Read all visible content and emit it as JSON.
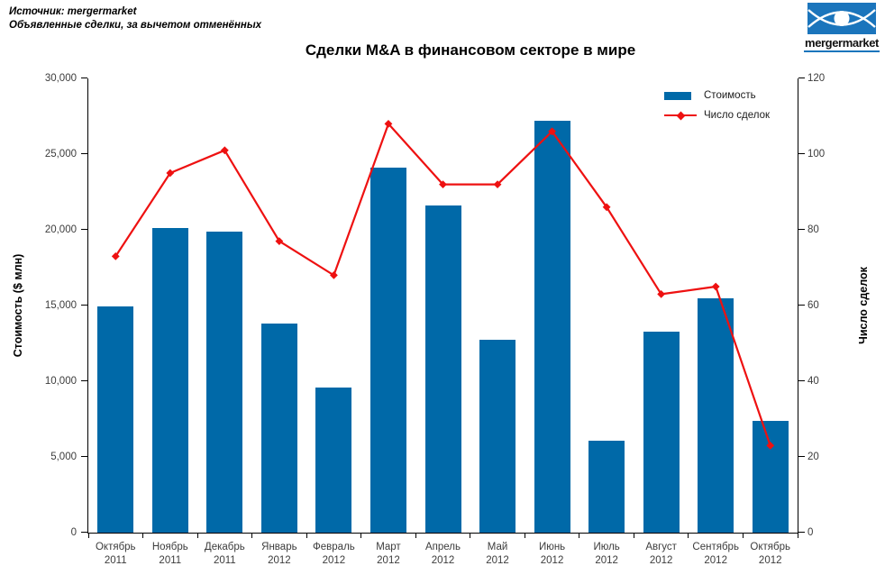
{
  "header": {
    "source_line1": "Источник: mergermarket",
    "source_line2": "Объявленные сделки, за вычетом отменённых",
    "logo_text": "mergermarket"
  },
  "colors": {
    "bar": "#0069a8",
    "line": "#ee1111",
    "logo_blue": "#1b75bc",
    "axis_text": "#3c3c3c"
  },
  "chart_data": {
    "type": "bar",
    "subtype": "combo bar + line, dual axis",
    "title": "Сделки M&A в финансовом секторе в мире",
    "grid": "off",
    "legend_position": "top-right inside plot",
    "categories": [
      {
        "month": "Октябрь",
        "year": "2011"
      },
      {
        "month": "Ноябрь",
        "year": "2011"
      },
      {
        "month": "Декабрь",
        "year": "2011"
      },
      {
        "month": "Январь",
        "year": "2012"
      },
      {
        "month": "Февраль",
        "year": "2012"
      },
      {
        "month": "Март",
        "year": "2012"
      },
      {
        "month": "Апрель",
        "year": "2012"
      },
      {
        "month": "Май",
        "year": "2012"
      },
      {
        "month": "Июнь",
        "year": "2012"
      },
      {
        "month": "Июль",
        "year": "2012"
      },
      {
        "month": "Август",
        "year": "2012"
      },
      {
        "month": "Сентябрь",
        "year": "2012"
      },
      {
        "month": "Октябрь",
        "year": "2012"
      }
    ],
    "series": [
      {
        "name": "Стоимость",
        "type": "bar",
        "axis": "left",
        "color": "#0069a8",
        "values": [
          14950,
          20100,
          19900,
          13800,
          9600,
          24100,
          21600,
          12750,
          27200,
          6100,
          13250,
          15500,
          7400
        ]
      },
      {
        "name": "Число сделок",
        "type": "line",
        "axis": "right",
        "color": "#ee1111",
        "marker": "diamond",
        "values": [
          73,
          95,
          101,
          77,
          68,
          108,
          92,
          92,
          106,
          86,
          63,
          65,
          23
        ]
      }
    ],
    "left_axis": {
      "label": "Стоимость ($ млн)",
      "min": 0,
      "max": 30000,
      "step": 5000,
      "tick_labels": [
        "0",
        "5,000",
        "10,000",
        "15,000",
        "20,000",
        "25,000",
        "30,000"
      ]
    },
    "right_axis": {
      "label": "Число сделок",
      "min": 0,
      "max": 120,
      "step": 20,
      "tick_labels": [
        "0",
        "20",
        "40",
        "60",
        "80",
        "100",
        "120"
      ]
    }
  }
}
